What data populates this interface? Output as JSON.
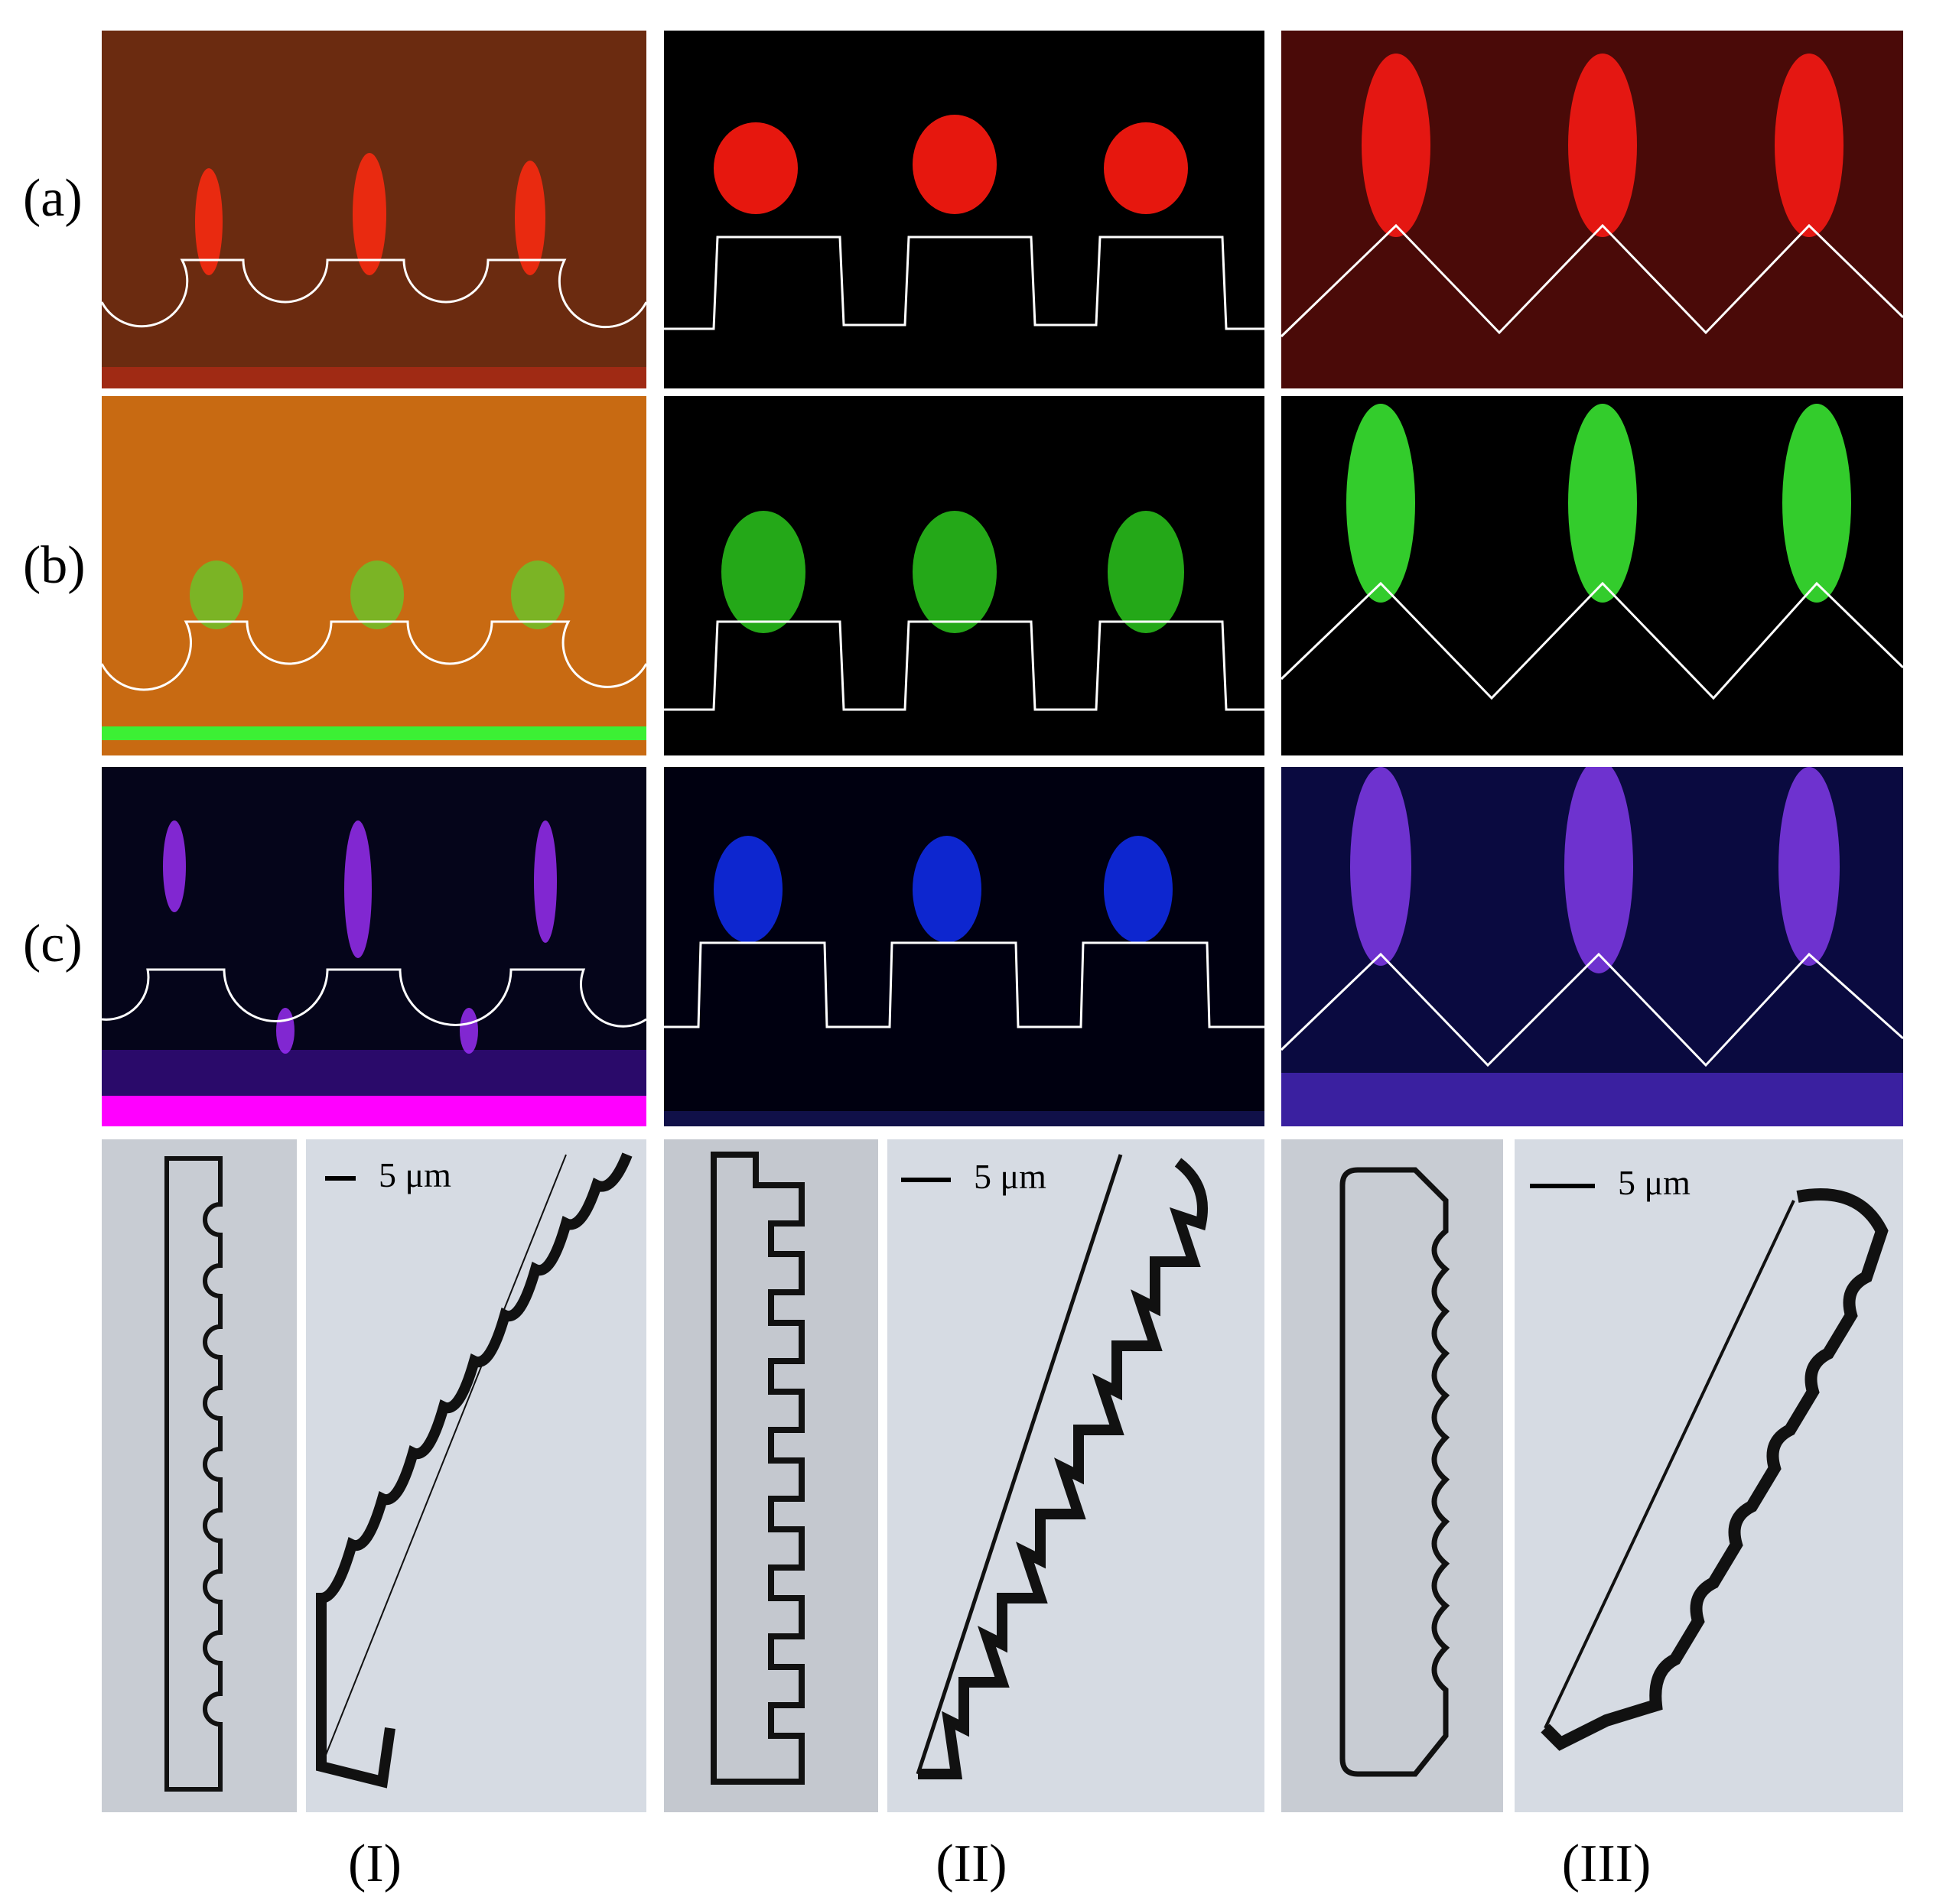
{
  "row_labels": [
    "(a)",
    "(b)",
    "(c)"
  ],
  "column_labels": [
    "(I)",
    "(II)",
    "(III)"
  ],
  "scale_bar_text": "5 μm",
  "colors": {
    "row_a_background": "#6b2b10",
    "row_a_signal": "#ff2a10",
    "row_b_background": "#c86a12",
    "row_b_signal": "#3cf034",
    "row_c_background": "#05051a",
    "row_c_signal": "#a030ff",
    "row_c_substrate": "#ff00ff",
    "row_c_blue": "#1030ff",
    "profile_line": "#ffffff",
    "sem_background": "#d6dbe3",
    "sem_edge": "#111111"
  },
  "profiles": [
    "semicircular-grooves",
    "rectangular-grooves",
    "triangular-grooves"
  ]
}
